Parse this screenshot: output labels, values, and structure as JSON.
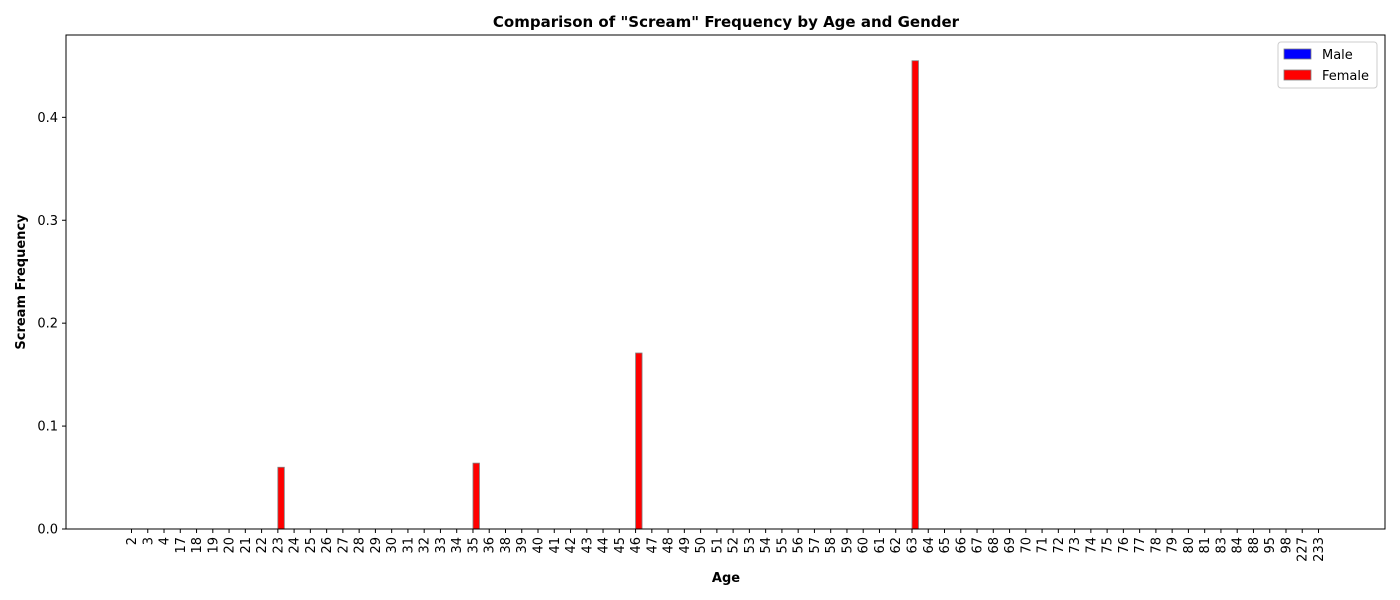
{
  "chart_data": {
    "type": "bar",
    "title": "Comparison of \"Scream\" Frequency by Age and Gender",
    "xlabel": "Age",
    "ylabel": "Scream Frequency",
    "ylim": [
      0,
      0.48
    ],
    "yticks": [
      "0.0",
      "0.1",
      "0.2",
      "0.3",
      "0.4"
    ],
    "categories": [
      "2",
      "3",
      "4",
      "17",
      "18",
      "19",
      "20",
      "21",
      "22",
      "23",
      "24",
      "25",
      "26",
      "27",
      "28",
      "29",
      "30",
      "31",
      "32",
      "33",
      "34",
      "35",
      "36",
      "38",
      "39",
      "40",
      "41",
      "42",
      "43",
      "44",
      "45",
      "46",
      "47",
      "48",
      "49",
      "50",
      "51",
      "52",
      "53",
      "54",
      "55",
      "56",
      "57",
      "58",
      "59",
      "60",
      "61",
      "62",
      "63",
      "64",
      "65",
      "66",
      "67",
      "68",
      "69",
      "70",
      "71",
      "72",
      "73",
      "74",
      "75",
      "76",
      "77",
      "78",
      "79",
      "80",
      "81",
      "83",
      "84",
      "88",
      "95",
      "98",
      "227",
      "233"
    ],
    "series": [
      {
        "name": "Male",
        "color": "#0000ff",
        "values": [
          0,
          0,
          0,
          0,
          0,
          0,
          0,
          0,
          0,
          0,
          0,
          0,
          0,
          0,
          0,
          0,
          0,
          0,
          0,
          0,
          0,
          0,
          0,
          0,
          0,
          0,
          0,
          0,
          0,
          0,
          0,
          0,
          0,
          0,
          0,
          0,
          0,
          0,
          0,
          0,
          0,
          0,
          0,
          0,
          0,
          0,
          0,
          0,
          0,
          0,
          0,
          0,
          0,
          0,
          0,
          0,
          0,
          0,
          0,
          0,
          0,
          0,
          0,
          0,
          0,
          0,
          0,
          0,
          0,
          0,
          0,
          0,
          0,
          0
        ]
      },
      {
        "name": "Female",
        "color": "#ff0000",
        "values": [
          0,
          0,
          0,
          0,
          0,
          0,
          0,
          0,
          0,
          0.06,
          0,
          0,
          0,
          0,
          0,
          0,
          0,
          0,
          0,
          0,
          0,
          0.064,
          0,
          0,
          0,
          0,
          0,
          0,
          0,
          0,
          0,
          0.171,
          0,
          0,
          0,
          0,
          0,
          0,
          0,
          0,
          0,
          0,
          0,
          0,
          0,
          0,
          0,
          0,
          0.455,
          0,
          0,
          0,
          0,
          0,
          0,
          0,
          0,
          0,
          0,
          0,
          0,
          0,
          0,
          0,
          0,
          0,
          0,
          0,
          0,
          0,
          0,
          0,
          0,
          0
        ]
      }
    ],
    "grid": false,
    "legend": "top-right"
  }
}
